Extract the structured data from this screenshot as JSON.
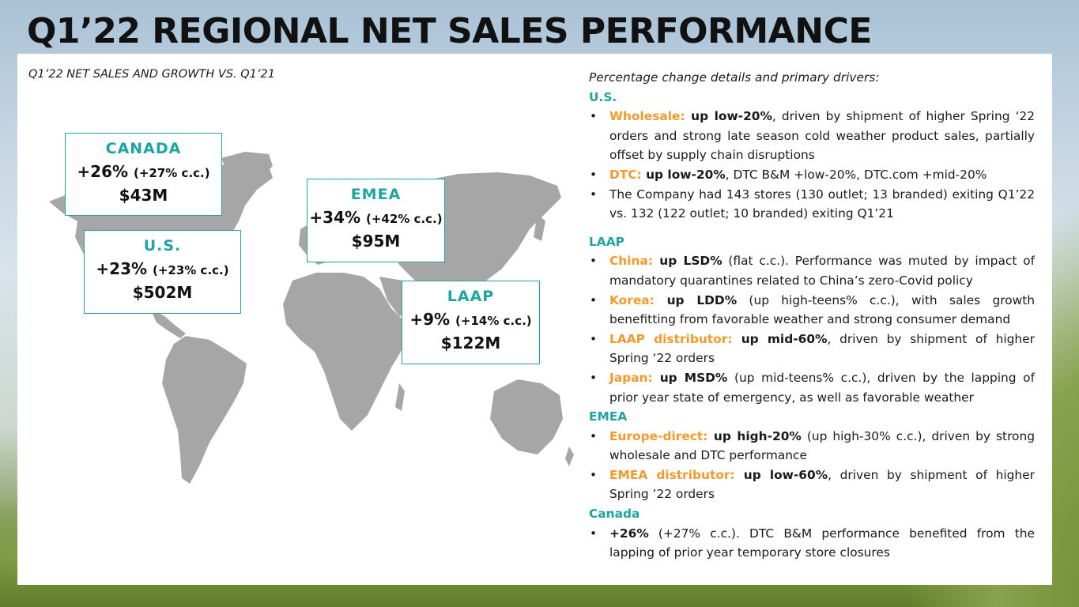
{
  "title": "Q1’22 REGIONAL NET SALES PERFORMANCE",
  "subtitle": "Q1’22 NET SALES AND GROWTH VS. Q1’21",
  "regions": {
    "canada": {
      "name": "CANADA",
      "growth": "+26%",
      "cc": "(+27% c.c.)",
      "value": "$43M"
    },
    "us": {
      "name": "U.S.",
      "growth": "+23%",
      "cc": "(+23% c.c.)",
      "value": "$502M"
    },
    "emea": {
      "name": "EMEA",
      "growth": "+34%",
      "cc": "(+42% c.c.)",
      "value": "$95M"
    },
    "laap": {
      "name": "LAAP",
      "growth": "+9%",
      "cc": "(+14% c.c.)",
      "value": "$122M"
    }
  },
  "drivers": {
    "intro": "Percentage change details and primary drivers:",
    "us": {
      "heading": "U.S.",
      "items": [
        {
          "label": "Wholesale:",
          "bold": " up low-20%",
          "text": ", driven by shipment of higher Spring ‘22 orders and strong late season cold weather product sales, partially offset by supply chain disruptions"
        },
        {
          "label": "DTC:",
          "bold": " up low-20%",
          "text": ", DTC B&M +low-20%, DTC.com +mid-20%"
        },
        {
          "label": "",
          "bold": "",
          "text": "The Company had 143 stores (130 outlet; 13 branded) exiting Q1’22 vs. 132 (122 outlet; 10 branded) exiting Q1’21"
        }
      ]
    },
    "laap": {
      "heading": "LAAP",
      "items": [
        {
          "label": "China:",
          "bold": " up LSD%",
          "text": " (flat c.c.). Performance was muted by impact of mandatory quarantines related to China’s zero-Covid policy"
        },
        {
          "label": "Korea:",
          "bold": " up LDD%",
          "text": " (up high-teens% c.c.), with sales growth benefitting from favorable weather and strong consumer demand"
        },
        {
          "label": "LAAP distributor:",
          "bold": " up mid-60%",
          "text": ", driven by shipment of higher Spring ‘22 orders"
        },
        {
          "label": "Japan:",
          "bold": " up MSD%",
          "text": " (up mid-teens% c.c.), driven by the lapping of prior year state of emergency, as well as favorable weather"
        }
      ]
    },
    "emea": {
      "heading": "EMEA",
      "items": [
        {
          "label": "Europe-direct:",
          "bold": " up high-20%",
          "text": " (up high-30% c.c.), driven by strong wholesale and DTC performance"
        },
        {
          "label": "EMEA distributor:",
          "bold": " up low-60%",
          "text": ", driven by shipment of higher Spring ’22 orders"
        }
      ]
    },
    "canada": {
      "heading": "Canada",
      "items": [
        {
          "label": "",
          "bold": "+26%",
          "text": " (+27% c.c.). DTC B&M performance benefited from the lapping of prior year temporary store closures"
        }
      ]
    }
  },
  "colors": {
    "teal": "#1fa3a3",
    "orange": "#f29a2e",
    "map_gray": "#a6a6a6"
  }
}
